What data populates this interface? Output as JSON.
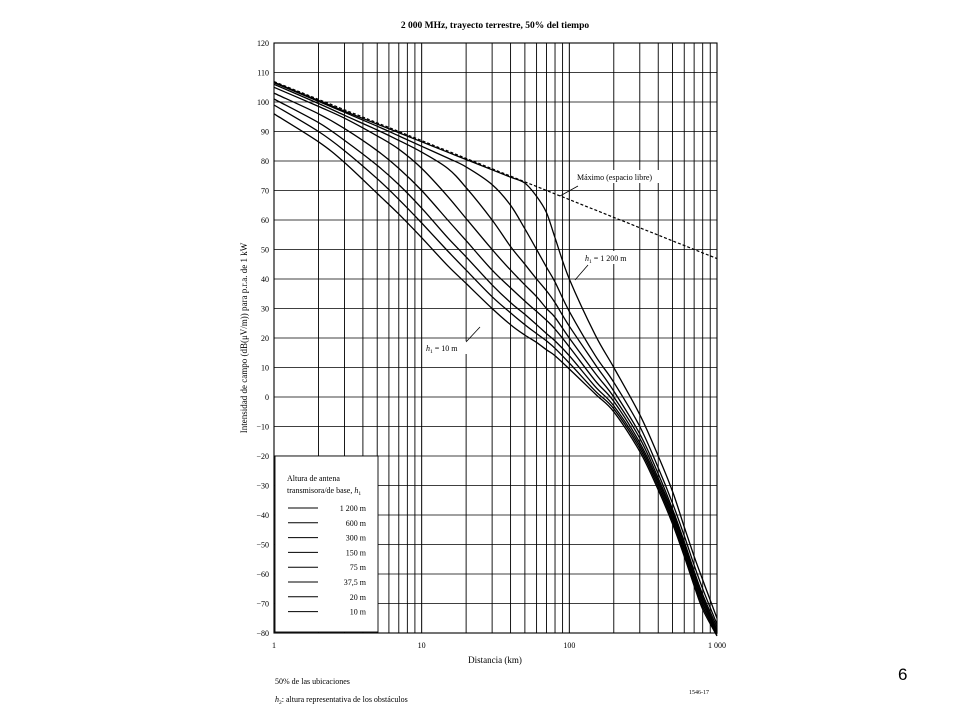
{
  "slide": {
    "page_number": "6"
  },
  "chart_data": {
    "type": "line",
    "title": "2 000 MHz, trayecto terrestre, 50% del tiempo",
    "xlabel": "Distancia (km)",
    "ylabel": "Intensidad de campo (dB(μV/m)) para p.r.a. de 1 kW",
    "x_scale": "log",
    "xlim": [
      1,
      1000
    ],
    "ylim": [
      -80,
      120
    ],
    "x_ticks": [
      "1",
      "10",
      "100",
      "1 000"
    ],
    "y_ticks": [
      "120",
      "110",
      "100",
      "90",
      "80",
      "70",
      "60",
      "50",
      "40",
      "30",
      "20",
      "10",
      "0",
      "−10",
      "−20",
      "−30",
      "−40",
      "−50",
      "−60",
      "−70",
      "−80"
    ],
    "grid": true,
    "free_space": {
      "label": "Máximo (espacio libre)",
      "x": [
        1,
        10,
        100,
        1000
      ],
      "y": [
        106.9,
        86.9,
        66.9,
        46.9
      ]
    },
    "x": [
      1,
      2,
      3,
      5,
      7,
      10,
      15,
      20,
      30,
      40,
      50,
      60,
      70,
      80,
      100,
      150,
      200,
      300,
      400,
      500,
      600,
      700,
      800,
      1000
    ],
    "series": [
      {
        "name": "1 200 m",
        "values": [
          106.7,
          100.5,
          96.9,
          92.5,
          89.6,
          86.5,
          83.0,
          80.5,
          77.0,
          74.5,
          72.5,
          68.0,
          62.5,
          54.0,
          40.0,
          21.0,
          10.0,
          -6.0,
          -20.0,
          -32.0,
          -44.0,
          -54.0,
          -62.0,
          -75.0
        ]
      },
      {
        "name": "600 m",
        "values": [
          106.5,
          100.2,
          96.5,
          91.8,
          88.5,
          85.0,
          81.0,
          78.0,
          72.0,
          65.0,
          57.0,
          50.0,
          44.0,
          39.0,
          29.0,
          14.0,
          5.0,
          -10.0,
          -24.0,
          -36.0,
          -47.0,
          -57.0,
          -65.0,
          -77.0
        ]
      },
      {
        "name": "300 m",
        "values": [
          106.0,
          99.5,
          95.5,
          90.5,
          87.0,
          83.0,
          77.5,
          71.0,
          60.0,
          51.0,
          45.0,
          40.0,
          36.0,
          32.0,
          24.0,
          11.0,
          2.0,
          -12.5,
          -26.0,
          -38.0,
          -49.0,
          -59.0,
          -67.0,
          -78.0
        ]
      },
      {
        "name": "150 m",
        "values": [
          105.0,
          98.5,
          94.5,
          88.5,
          84.0,
          77.5,
          68.0,
          60.5,
          50.0,
          43.0,
          38.0,
          34.0,
          30.0,
          27.0,
          20.0,
          8.0,
          0.0,
          -14.0,
          -27.5,
          -39.0,
          -50.0,
          -60.0,
          -68.0,
          -79.0
        ]
      },
      {
        "name": "75 m",
        "values": [
          103.0,
          96.0,
          91.0,
          83.5,
          77.5,
          70.0,
          60.0,
          53.0,
          43.0,
          37.0,
          32.5,
          29.0,
          26.0,
          23.0,
          17.0,
          5.5,
          -1.5,
          -15.5,
          -28.5,
          -40.0,
          -51.0,
          -61.0,
          -69.0,
          -79.5
        ]
      },
      {
        "name": "37,5 m",
        "values": [
          101.0,
          93.0,
          87.0,
          78.5,
          72.0,
          64.0,
          54.0,
          47.5,
          38.0,
          32.0,
          28.0,
          24.5,
          21.5,
          19.0,
          14.0,
          3.5,
          -3.0,
          -16.5,
          -29.5,
          -41.0,
          -52.0,
          -62.0,
          -70.0,
          -80.0
        ]
      },
      {
        "name": "20 m",
        "values": [
          99.0,
          90.0,
          83.5,
          74.0,
          67.0,
          59.0,
          49.5,
          43.0,
          34.0,
          28.5,
          24.5,
          21.5,
          19.0,
          16.5,
          11.5,
          2.0,
          -4.0,
          -17.5,
          -30.5,
          -42.0,
          -53.0,
          -63.0,
          -71.0,
          -80.5
        ]
      },
      {
        "name": "10 m",
        "values": [
          96.0,
          86.5,
          79.5,
          69.0,
          62.0,
          54.0,
          44.5,
          38.5,
          30.0,
          24.5,
          21.0,
          18.5,
          16.0,
          14.0,
          9.5,
          1.0,
          -5.0,
          -18.5,
          -31.5,
          -43.0,
          -54.0,
          -64.0,
          -72.0,
          -81.0
        ]
      }
    ],
    "annotations": [
      {
        "label": "Máximo (espacio libre)",
        "points_to": "free_space"
      },
      {
        "label_italic": "h",
        "label_sub": "1",
        "label_rest": " = 1 200 m",
        "points_to": "1 200 m"
      },
      {
        "label_italic": "h",
        "label_sub": "1",
        "label_rest": " = 10 m",
        "points_to": "10 m"
      }
    ],
    "legend": {
      "placement": "bottom-left",
      "title_line1": "Altura de antena",
      "title_line2_prefix": "transmisora/de base, ",
      "title_line2_italic": "h",
      "title_line2_sub": "1",
      "items": [
        "1 200 m",
        "600 m",
        "300 m",
        "150 m",
        "75 m",
        "37,5 m",
        "20 m",
        "10 m"
      ]
    },
    "footnote_1": "50% de las ubicaciones",
    "footnote_2_italic": "h",
    "footnote_2_sub": "2",
    "footnote_2_rest": ": altura representativa de los obstáculos",
    "figure_id": "1546-17"
  }
}
